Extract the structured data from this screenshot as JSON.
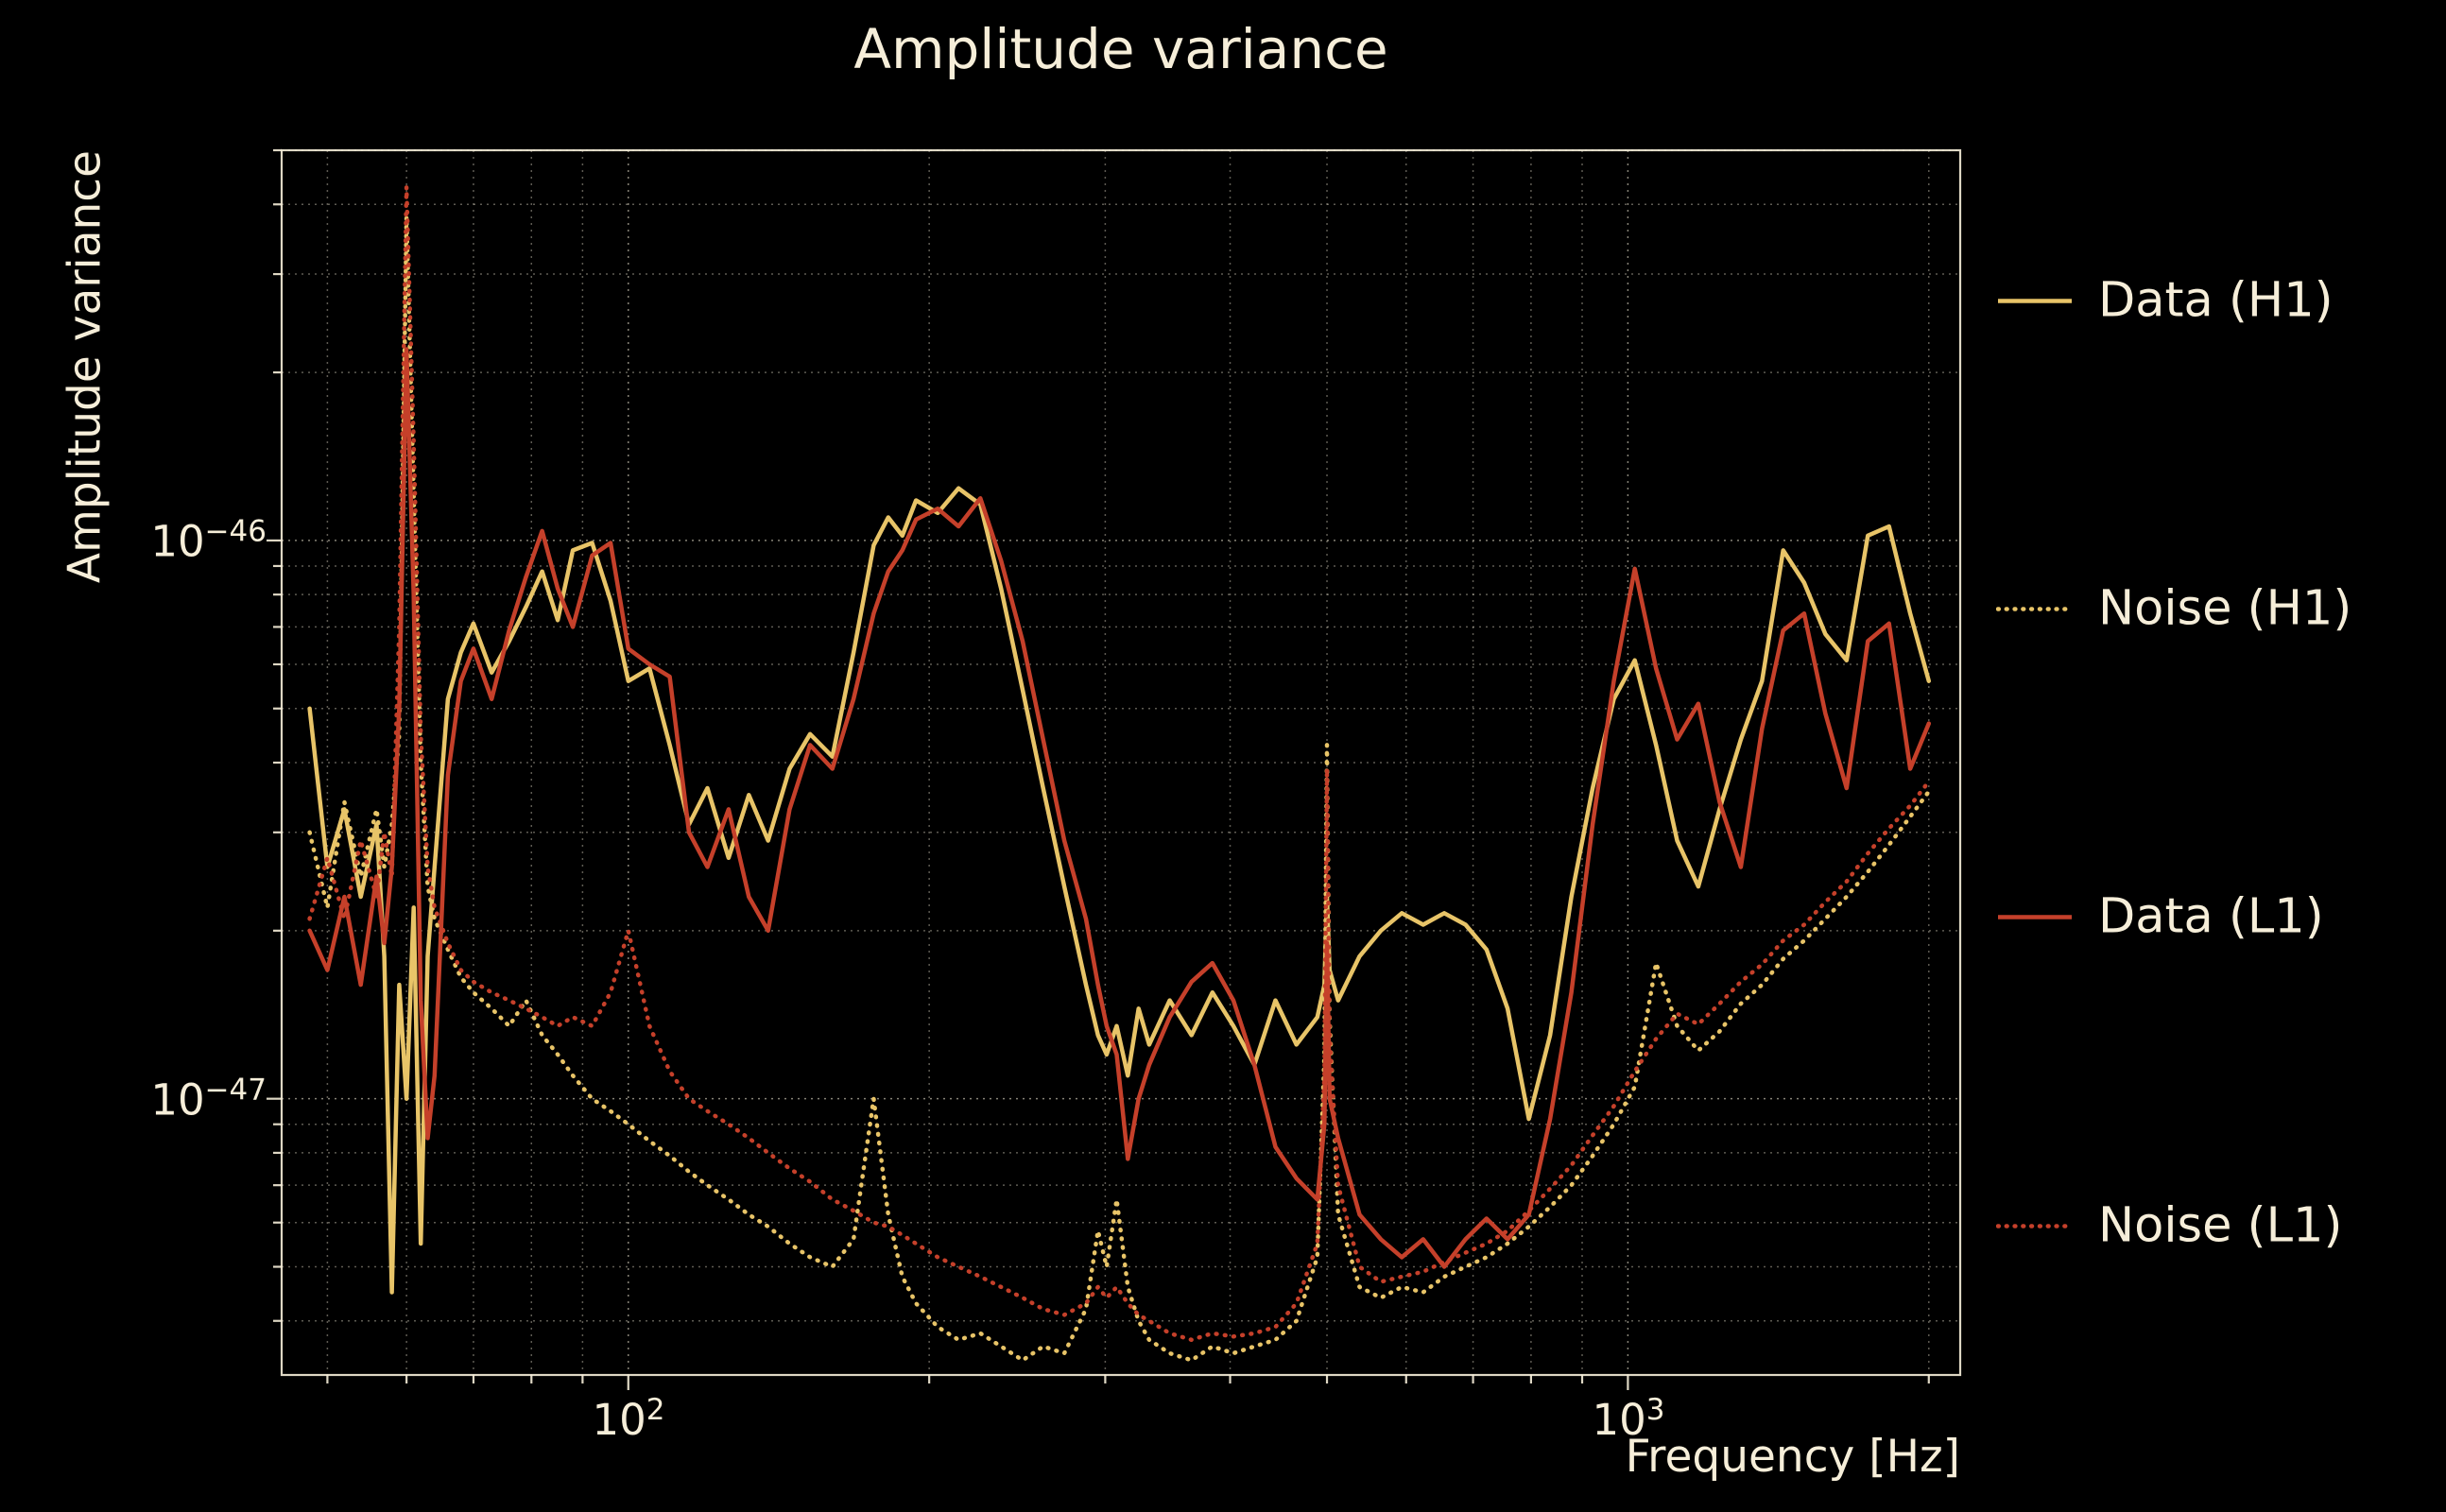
{
  "title": "Amplitude variance",
  "axes": {
    "xlabel": "Frequency [Hz]",
    "ylabel": "Amplitude variance",
    "x_ticks": [
      {
        "base": "10",
        "exp": "2"
      },
      {
        "base": "10",
        "exp": "3"
      }
    ],
    "y_ticks": [
      {
        "base": "10",
        "exp": "−46"
      },
      {
        "base": "10",
        "exp": "−47"
      }
    ]
  },
  "legend": [
    {
      "label": "Data (H1)",
      "style": "solid",
      "color": "#e8c468"
    },
    {
      "label": "Noise (H1)",
      "style": "dotted",
      "color": "#e8c468"
    },
    {
      "label": "Data (L1)",
      "style": "solid",
      "color": "#c5402a"
    },
    {
      "label": "Noise (L1)",
      "style": "dotted",
      "color": "#c5402a"
    }
  ],
  "colors": {
    "background": "#000000",
    "text": "#f6eed9",
    "grid": "#f6eed9",
    "spine": "#f6eed9",
    "h1": "#e8c468",
    "l1": "#c5402a"
  },
  "chart_data": {
    "type": "line",
    "title": "Amplitude variance",
    "xlabel": "Frequency [Hz]",
    "ylabel": "Amplitude variance",
    "x_scale": "log",
    "y_scale": "log",
    "grid": true,
    "legend_position": "right-outside",
    "xlim": [
      45,
      2150
    ],
    "ylim": [
      3.2e-48,
      5e-46
    ],
    "y_unit": 1e-47,
    "x": [
      48,
      50,
      52,
      54,
      56,
      57,
      58,
      59,
      60,
      61,
      62,
      63,
      64,
      66,
      68,
      70,
      73,
      76,
      79,
      82,
      85,
      88,
      92,
      96,
      100,
      105,
      110,
      115,
      120,
      126,
      132,
      138,
      145,
      152,
      160,
      168,
      176,
      182,
      188,
      194,
      204,
      214,
      225,
      236,
      248,
      260,
      273,
      287,
      295,
      301,
      308,
      316,
      324,
      332,
      348,
      366,
      384,
      403,
      423,
      444,
      466,
      489,
      497,
      500,
      503,
      513,
      539,
      566,
      594,
      624,
      655,
      688,
      722,
      758,
      796,
      836,
      878,
      922,
      968,
      1016,
      1067,
      1120,
      1176,
      1235,
      1297,
      1362,
      1430,
      1501,
      1576,
      1655,
      1738,
      1825,
      1916,
      2000
    ],
    "series": [
      {
        "id": "data-h1",
        "name": "Data (H1)",
        "color": "#e8c468",
        "linestyle": "solid",
        "y": [
          5.0,
          2.6,
          3.3,
          2.3,
          3.1,
          1.8,
          0.45,
          1.6,
          1.0,
          2.2,
          0.55,
          1.8,
          2.6,
          5.2,
          6.3,
          7.1,
          5.8,
          6.6,
          7.6,
          8.8,
          7.2,
          9.6,
          9.9,
          7.8,
          5.6,
          5.9,
          4.3,
          3.1,
          3.6,
          2.7,
          3.5,
          2.9,
          3.9,
          4.5,
          4.1,
          6.3,
          9.8,
          11.0,
          10.2,
          11.8,
          11.2,
          12.4,
          11.6,
          8.2,
          5.4,
          3.6,
          2.4,
          1.6,
          1.3,
          1.2,
          1.35,
          1.1,
          1.45,
          1.25,
          1.5,
          1.3,
          1.55,
          1.35,
          1.15,
          1.5,
          1.25,
          1.4,
          1.6,
          2.3,
          1.7,
          1.5,
          1.8,
          2.0,
          2.15,
          2.05,
          2.15,
          2.05,
          1.85,
          1.45,
          0.92,
          1.3,
          2.3,
          3.6,
          5.2,
          6.1,
          4.3,
          2.9,
          2.4,
          3.3,
          4.4,
          5.6,
          9.6,
          8.4,
          6.8,
          6.1,
          10.2,
          10.6,
          7.4,
          5.6
        ]
      },
      {
        "id": "noise-h1",
        "name": "Noise (H1)",
        "color": "#e8c468",
        "linestyle": "dotted",
        "y": [
          3.0,
          2.2,
          3.4,
          2.5,
          3.3,
          2.6,
          3.1,
          4.5,
          38.0,
          12.0,
          4.0,
          2.4,
          2.1,
          1.85,
          1.65,
          1.55,
          1.45,
          1.35,
          1.5,
          1.3,
          1.2,
          1.1,
          1.0,
          0.95,
          0.9,
          0.84,
          0.79,
          0.74,
          0.7,
          0.66,
          0.62,
          0.59,
          0.55,
          0.52,
          0.5,
          0.56,
          1.0,
          0.62,
          0.48,
          0.43,
          0.39,
          0.37,
          0.38,
          0.36,
          0.34,
          0.36,
          0.35,
          0.42,
          0.58,
          0.5,
          0.66,
          0.46,
          0.4,
          0.37,
          0.35,
          0.34,
          0.36,
          0.35,
          0.36,
          0.37,
          0.4,
          0.52,
          1.2,
          4.3,
          1.4,
          0.62,
          0.46,
          0.44,
          0.46,
          0.45,
          0.48,
          0.5,
          0.52,
          0.55,
          0.59,
          0.64,
          0.7,
          0.79,
          0.9,
          1.05,
          1.75,
          1.35,
          1.22,
          1.32,
          1.48,
          1.6,
          1.78,
          1.92,
          2.1,
          2.3,
          2.55,
          2.85,
          3.2,
          3.55
        ]
      },
      {
        "id": "data-l1",
        "name": "Data (L1)",
        "color": "#c5402a",
        "linestyle": "solid",
        "y": [
          2.0,
          1.7,
          2.3,
          1.6,
          2.5,
          1.9,
          2.6,
          5.0,
          22.0,
          8.0,
          1.5,
          0.85,
          1.1,
          3.8,
          5.6,
          6.4,
          5.2,
          6.9,
          8.6,
          10.4,
          8.2,
          7.0,
          9.4,
          9.9,
          6.4,
          6.0,
          5.7,
          3.0,
          2.6,
          3.3,
          2.3,
          2.0,
          3.3,
          4.3,
          3.9,
          5.2,
          7.4,
          8.8,
          9.6,
          10.9,
          11.4,
          10.6,
          11.9,
          9.2,
          6.6,
          4.4,
          2.9,
          2.1,
          1.6,
          1.35,
          1.2,
          0.78,
          1.0,
          1.15,
          1.4,
          1.62,
          1.75,
          1.5,
          1.15,
          0.82,
          0.72,
          0.66,
          0.9,
          1.9,
          1.0,
          0.85,
          0.62,
          0.56,
          0.52,
          0.56,
          0.5,
          0.56,
          0.61,
          0.56,
          0.62,
          0.92,
          1.55,
          3.1,
          5.6,
          8.9,
          5.9,
          4.4,
          5.1,
          3.4,
          2.6,
          4.6,
          6.9,
          7.4,
          4.9,
          3.6,
          6.6,
          7.1,
          3.9,
          4.7
        ]
      },
      {
        "id": "noise-l1",
        "name": "Noise (L1)",
        "color": "#c5402a",
        "linestyle": "dotted",
        "y": [
          2.1,
          2.7,
          2.1,
          2.9,
          2.3,
          3.0,
          2.5,
          7.0,
          43.0,
          15.0,
          4.5,
          2.6,
          2.2,
          1.9,
          1.7,
          1.62,
          1.55,
          1.5,
          1.45,
          1.4,
          1.35,
          1.4,
          1.35,
          1.55,
          2.0,
          1.35,
          1.12,
          1.0,
          0.95,
          0.9,
          0.85,
          0.8,
          0.75,
          0.71,
          0.66,
          0.63,
          0.6,
          0.59,
          0.57,
          0.55,
          0.52,
          0.5,
          0.48,
          0.46,
          0.44,
          0.42,
          0.41,
          0.43,
          0.46,
          0.44,
          0.46,
          0.43,
          0.41,
          0.4,
          0.38,
          0.37,
          0.38,
          0.375,
          0.38,
          0.39,
          0.43,
          0.55,
          1.1,
          3.9,
          1.3,
          0.7,
          0.5,
          0.47,
          0.48,
          0.49,
          0.51,
          0.53,
          0.55,
          0.58,
          0.63,
          0.69,
          0.76,
          0.86,
          0.97,
          1.12,
          1.28,
          1.42,
          1.36,
          1.48,
          1.62,
          1.74,
          1.92,
          2.05,
          2.25,
          2.45,
          2.75,
          3.05,
          3.35,
          3.7
        ]
      }
    ]
  }
}
